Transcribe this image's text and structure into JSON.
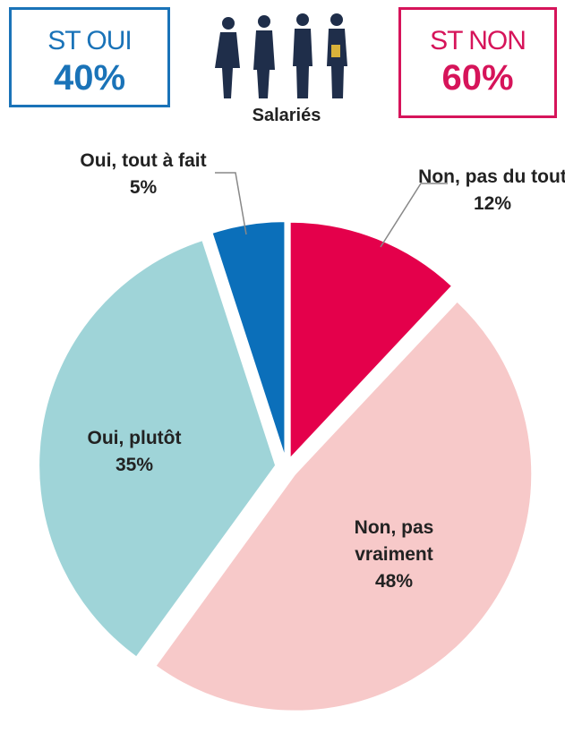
{
  "chart_data": {
    "type": "pie",
    "subtitle": "Salariés",
    "categories": [
      "Non, pas du tout",
      "Non, pas vraiment",
      "Oui, plutôt",
      "Oui, tout à fait"
    ],
    "values": [
      12,
      48,
      35,
      5
    ],
    "value_labels": [
      "12%",
      "48%",
      "35%",
      "5%"
    ],
    "colors": [
      "#e4004b",
      "#f7c9c9",
      "#9fd4d8",
      "#0b6fba"
    ]
  },
  "summary": [
    {
      "label": "ST OUI",
      "value": 40,
      "value_label": "40%",
      "color": "#1a73b8"
    },
    {
      "label": "ST NON",
      "value": 60,
      "value_label": "60%",
      "color": "#d6145a"
    }
  ]
}
